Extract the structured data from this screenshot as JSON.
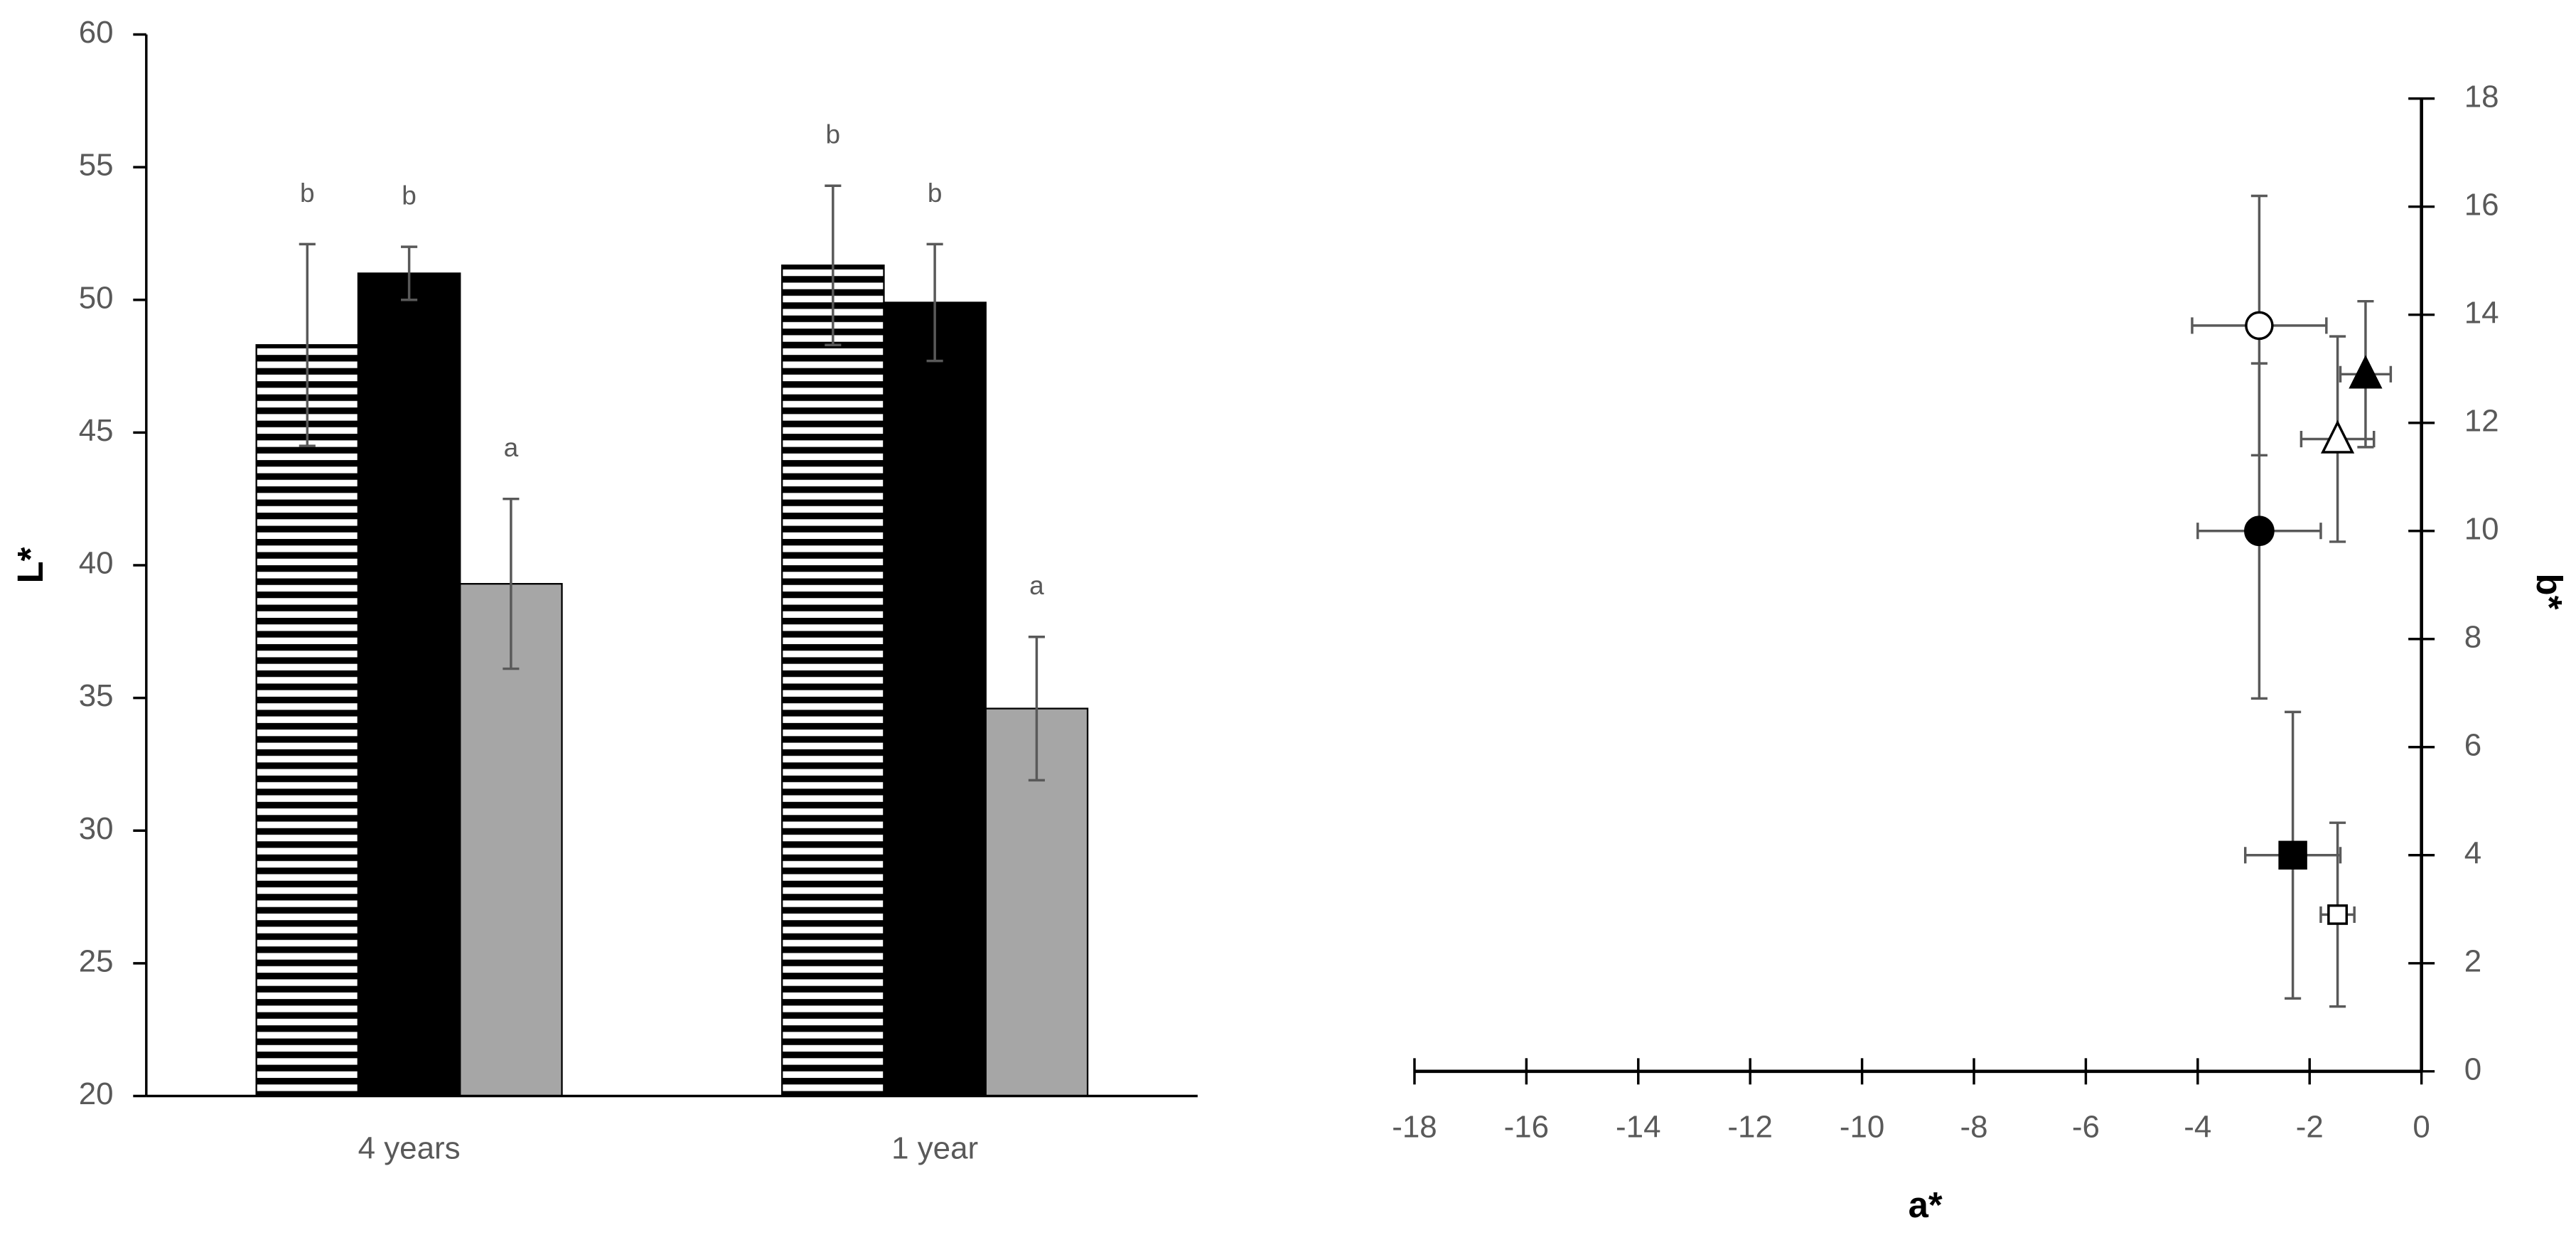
{
  "chart_data": [
    {
      "type": "bar",
      "y_label": "L*",
      "categories": [
        "4 years",
        "1 year"
      ],
      "ylim": [
        20,
        60
      ],
      "yticks": [
        20,
        25,
        30,
        35,
        40,
        45,
        50,
        55,
        60
      ],
      "series": [
        {
          "color": "#000000",
          "pattern": "horizontal-stripes",
          "values": [
            48.3,
            51.3
          ],
          "errors": [
            3.8,
            3.0
          ],
          "labels": [
            "b",
            "b"
          ]
        },
        {
          "color": "#000000",
          "values": [
            51.0,
            49.9
          ],
          "errors": [
            1.0,
            2.2
          ],
          "labels": [
            "b",
            "b"
          ]
        },
        {
          "color": "#a6a6a6",
          "values": [
            39.3,
            34.6
          ],
          "errors": [
            3.2,
            2.7
          ],
          "labels": [
            "a",
            "a"
          ]
        }
      ]
    },
    {
      "type": "scatter",
      "x_label": "a*",
      "y_label": "b*",
      "xlim": [
        -18,
        0
      ],
      "xticks": [
        -18,
        -16,
        -14,
        -12,
        -10,
        -8,
        -6,
        -4,
        -2,
        0
      ],
      "ylim": [
        0,
        18
      ],
      "yticks": [
        0,
        2,
        4,
        6,
        8,
        10,
        12,
        14,
        16,
        18
      ],
      "series": [
        {
          "marker": "circle",
          "filled": false,
          "x": [
            -2.9
          ],
          "y": [
            13.8
          ],
          "xerr": [
            1.2
          ],
          "yerr": [
            2.4
          ]
        },
        {
          "marker": "circle",
          "filled": true,
          "x": [
            -2.9
          ],
          "y": [
            10.0
          ],
          "xerr": [
            1.1
          ],
          "yerr": [
            3.1
          ]
        },
        {
          "marker": "triangle",
          "filled": true,
          "x": [
            -1.0
          ],
          "y": [
            12.9
          ],
          "xerr": [
            0.45
          ],
          "yerr": [
            1.35
          ]
        },
        {
          "marker": "triangle",
          "filled": false,
          "x": [
            -1.5
          ],
          "y": [
            11.7
          ],
          "xerr": [
            0.65
          ],
          "yerr": [
            1.9
          ]
        },
        {
          "marker": "square",
          "filled": true,
          "x": [
            -2.3
          ],
          "y": [
            4.0
          ],
          "xerr": [
            0.85
          ],
          "yerr": [
            2.65
          ]
        },
        {
          "marker": "square",
          "filled": false,
          "x": [
            -1.5
          ],
          "y": [
            2.9
          ],
          "xerr": [
            0.3
          ],
          "yerr": [
            1.7
          ]
        }
      ]
    }
  ]
}
